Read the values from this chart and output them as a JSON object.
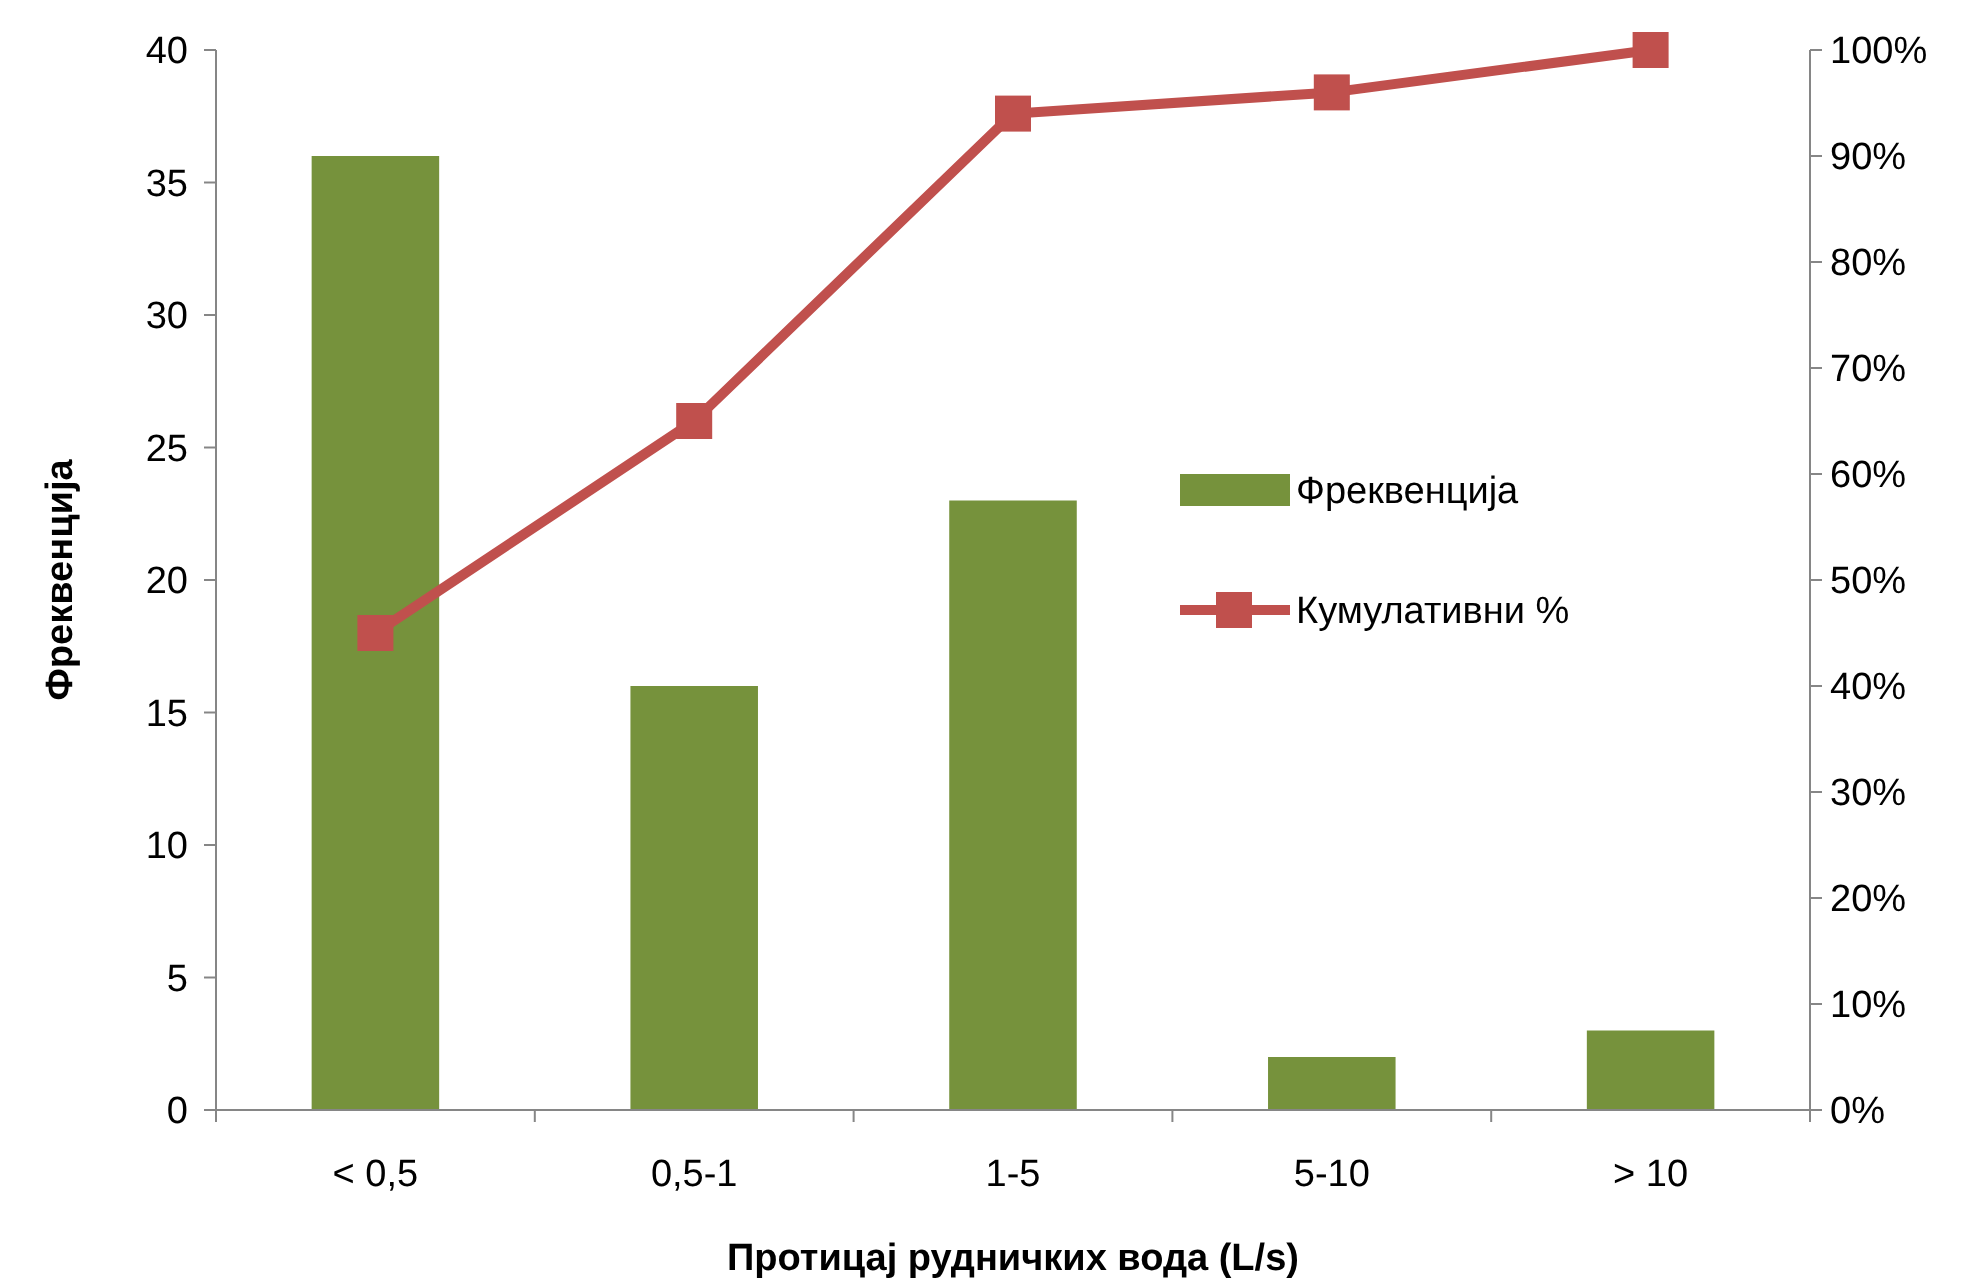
{
  "chart_data": {
    "type": "bar",
    "xlabel": "Протицај рудничких вода (L/s)",
    "ylabel": "Фреквенција",
    "categories": [
      "< 0,5",
      "0,5-1",
      "1-5",
      "5-10",
      "> 10"
    ],
    "series": [
      {
        "name": "Фреквенција",
        "color": "#76923c",
        "values": [
          36,
          16,
          23,
          2,
          3
        ]
      },
      {
        "name": "Кумулативни %",
        "type": "line",
        "axis": "y2",
        "color": "#c0504d",
        "values": [
          45,
          65,
          94,
          96,
          100
        ]
      }
    ],
    "ylim": [
      0,
      40
    ],
    "yticks": [
      0,
      5,
      10,
      15,
      20,
      25,
      30,
      35,
      40
    ],
    "y2lim": [
      0,
      100
    ],
    "y2ticks": [
      {
        "value": 0,
        "label": "0%"
      },
      {
        "value": 10,
        "label": "10%"
      },
      {
        "value": 20,
        "label": "20%"
      },
      {
        "value": 30,
        "label": "30%"
      },
      {
        "value": 40,
        "label": "40%"
      },
      {
        "value": 50,
        "label": "50%"
      },
      {
        "value": 60,
        "label": "60%"
      },
      {
        "value": 70,
        "label": "70%"
      },
      {
        "value": 80,
        "label": "80%"
      },
      {
        "value": 90,
        "label": "90%"
      },
      {
        "value": 100,
        "label": "100%"
      }
    ],
    "marker": "square",
    "line_style": "solid",
    "grid": false,
    "legend": "right"
  }
}
